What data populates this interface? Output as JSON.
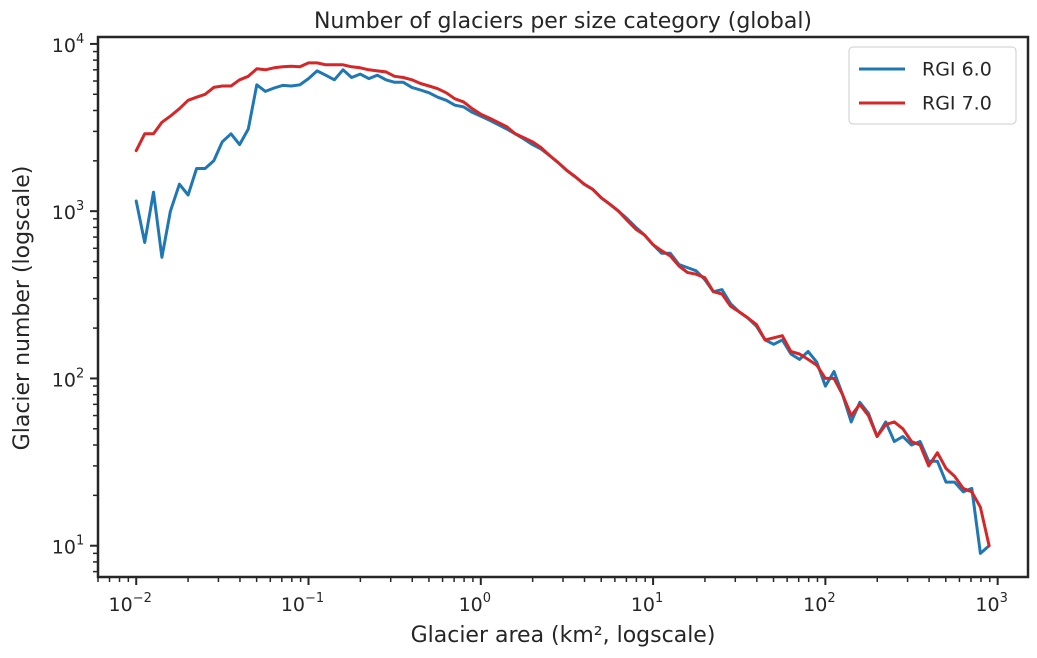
{
  "chart_data": {
    "type": "line",
    "title": "Number of glaciers per size category (global)",
    "xlabel": "Glacier area (km², logscale)",
    "ylabel": "Glacier number (logscale)",
    "xscale": "log",
    "yscale": "log",
    "xlim": [
      0.006,
      1500
    ],
    "ylim": [
      6.5,
      11000
    ],
    "x_ticks": [
      {
        "value": 0.01,
        "base": "10",
        "exp": "−2"
      },
      {
        "value": 0.1,
        "base": "10",
        "exp": "−1"
      },
      {
        "value": 1,
        "base": "10",
        "exp": "0"
      },
      {
        "value": 10,
        "base": "10",
        "exp": "1"
      },
      {
        "value": 100,
        "base": "10",
        "exp": "2"
      },
      {
        "value": 1000,
        "base": "10",
        "exp": "3"
      }
    ],
    "y_ticks": [
      {
        "value": 10,
        "base": "10",
        "exp": "1"
      },
      {
        "value": 100,
        "base": "10",
        "exp": "2"
      },
      {
        "value": 1000,
        "base": "10",
        "exp": "3"
      },
      {
        "value": 10000,
        "base": "10",
        "exp": "4"
      }
    ],
    "grid": false,
    "legend_position": "top-right",
    "series": [
      {
        "name": "RGI 6.0",
        "color": "#1f77b4",
        "x": [
          0.01,
          0.0112,
          0.0126,
          0.0141,
          0.0158,
          0.0178,
          0.02,
          0.0224,
          0.0251,
          0.0282,
          0.0316,
          0.0355,
          0.0398,
          0.0447,
          0.0501,
          0.0562,
          0.0631,
          0.0708,
          0.0794,
          0.0891,
          0.1,
          0.1122,
          0.1259,
          0.1413,
          0.1585,
          0.1778,
          0.1995,
          0.2239,
          0.2512,
          0.2818,
          0.3162,
          0.3548,
          0.3981,
          0.4467,
          0.5012,
          0.5623,
          0.631,
          0.7079,
          0.7943,
          0.8913,
          1.0,
          1.122,
          1.259,
          1.413,
          1.585,
          1.778,
          1.995,
          2.239,
          2.512,
          2.818,
          3.162,
          3.548,
          3.981,
          4.467,
          5.012,
          5.623,
          6.31,
          7.079,
          7.943,
          8.913,
          10.0,
          11.22,
          12.59,
          14.13,
          15.85,
          17.78,
          19.95,
          22.39,
          25.12,
          28.18,
          31.62,
          35.48,
          39.81,
          44.67,
          50.12,
          56.23,
          63.1,
          70.79,
          79.43,
          89.13,
          100.0,
          112.2,
          125.9,
          141.3,
          158.5,
          177.8,
          199.5,
          223.9,
          251.2,
          281.8,
          316.2,
          354.8,
          398.1,
          446.7,
          501.2,
          562.3,
          631.0,
          707.9,
          794.3,
          891.3
        ],
        "values": [
          1150,
          650,
          1300,
          530,
          1000,
          1450,
          1250,
          1800,
          1800,
          2000,
          2600,
          2900,
          2500,
          3100,
          5700,
          5200,
          5450,
          5650,
          5600,
          5700,
          6200,
          6900,
          6500,
          6100,
          7000,
          6300,
          6600,
          6200,
          6500,
          6100,
          5900,
          5900,
          5500,
          5300,
          5100,
          4800,
          4600,
          4300,
          4200,
          3900,
          3700,
          3500,
          3300,
          3100,
          2900,
          2700,
          2500,
          2350,
          2150,
          1950,
          1750,
          1600,
          1450,
          1350,
          1200,
          1100,
          1000,
          900,
          800,
          720,
          630,
          560,
          560,
          480,
          460,
          440,
          390,
          330,
          340,
          280,
          250,
          230,
          205,
          170,
          160,
          170,
          140,
          130,
          145,
          125,
          90,
          110,
          80,
          55,
          72,
          62,
          45,
          55,
          42,
          45,
          40,
          42,
          32,
          32,
          24,
          24,
          21,
          22,
          9,
          10
        ]
      },
      {
        "name": "RGI 7.0",
        "color": "#d62728",
        "x": [
          0.01,
          0.0112,
          0.0126,
          0.0141,
          0.0158,
          0.0178,
          0.02,
          0.0224,
          0.0251,
          0.0282,
          0.0316,
          0.0355,
          0.0398,
          0.0447,
          0.0501,
          0.0562,
          0.0631,
          0.0708,
          0.0794,
          0.0891,
          0.1,
          0.1122,
          0.1259,
          0.1413,
          0.1585,
          0.1778,
          0.1995,
          0.2239,
          0.2512,
          0.2818,
          0.3162,
          0.3548,
          0.3981,
          0.4467,
          0.5012,
          0.5623,
          0.631,
          0.7079,
          0.7943,
          0.8913,
          1.0,
          1.122,
          1.259,
          1.413,
          1.585,
          1.778,
          1.995,
          2.239,
          2.512,
          2.818,
          3.162,
          3.548,
          3.981,
          4.467,
          5.012,
          5.623,
          6.31,
          7.079,
          7.943,
          8.913,
          10.0,
          11.22,
          12.59,
          14.13,
          15.85,
          17.78,
          19.95,
          22.39,
          25.12,
          28.18,
          31.62,
          35.48,
          39.81,
          44.67,
          50.12,
          56.23,
          63.1,
          70.79,
          79.43,
          89.13,
          100.0,
          112.2,
          125.9,
          141.3,
          158.5,
          177.8,
          199.5,
          223.9,
          251.2,
          281.8,
          316.2,
          354.8,
          398.1,
          446.7,
          501.2,
          562.3,
          631.0,
          707.9,
          794.3,
          891.3
        ],
        "values": [
          2300,
          2900,
          2900,
          3400,
          3700,
          4100,
          4600,
          4800,
          5000,
          5500,
          5600,
          5600,
          6100,
          6400,
          7100,
          7000,
          7200,
          7300,
          7350,
          7300,
          7700,
          7700,
          7500,
          7500,
          7500,
          7300,
          7200,
          7000,
          6900,
          6800,
          6400,
          6300,
          6100,
          5800,
          5600,
          5400,
          5100,
          4700,
          4500,
          4100,
          3800,
          3600,
          3400,
          3200,
          2900,
          2750,
          2600,
          2400,
          2150,
          1950,
          1750,
          1600,
          1450,
          1350,
          1200,
          1100,
          1000,
          880,
          780,
          720,
          630,
          580,
          540,
          470,
          430,
          420,
          400,
          330,
          320,
          270,
          250,
          230,
          210,
          170,
          175,
          180,
          145,
          140,
          130,
          120,
          100,
          100,
          80,
          60,
          70,
          60,
          45,
          53,
          55,
          50,
          42,
          40,
          30,
          36,
          29,
          26,
          22,
          21,
          17,
          10
        ]
      }
    ]
  }
}
